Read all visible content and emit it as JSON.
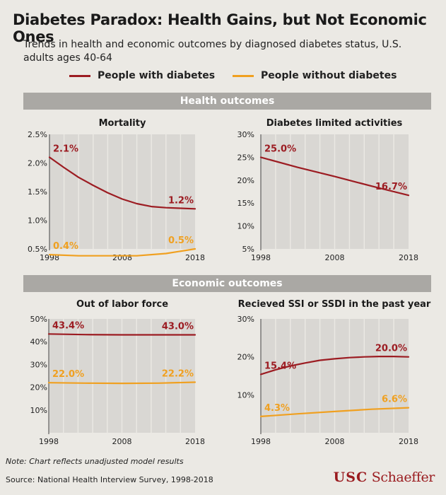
{
  "title": "Diabetes Paradox: Health Gains, but Not Economic Ones",
  "subtitle": "Trends in health and economic outcomes by diagnosed diabetes status, U.S. adults ages 40-64",
  "legend": [
    {
      "label": "People with diabetes",
      "color": "#9c1c22"
    },
    {
      "label": "People without diabetes",
      "color": "#f0a020"
    }
  ],
  "sections": {
    "health": "Health outcomes",
    "economic": "Economic outcomes"
  },
  "note": "Note: Chart reflects unadjusted model results",
  "source": "Source: National Health Interview Survey, 1998-2018",
  "logo": {
    "usc": "USC",
    "schaeffer": "Schaeffer"
  },
  "chart_data": [
    {
      "type": "line",
      "title": "Mortality",
      "x_ticks": [
        "1998",
        "2008",
        "2018"
      ],
      "y_ticks": [
        "2.5%",
        "2.0%",
        "1.5%",
        "1.0%",
        "0.5%"
      ],
      "ylim": [
        0.5,
        2.5
      ],
      "y_tick_values": [
        2.5,
        2.0,
        1.5,
        1.0,
        0.5
      ],
      "grid": "vertical",
      "series": [
        {
          "name": "People with diabetes",
          "color": "#9c1c22",
          "x": [
            1998,
            2000,
            2002,
            2004,
            2006,
            2008,
            2010,
            2012,
            2014,
            2016,
            2018
          ],
          "values": [
            2.1,
            1.92,
            1.75,
            1.61,
            1.48,
            1.37,
            1.29,
            1.24,
            1.22,
            1.21,
            1.2
          ],
          "start_label": "2.1%",
          "end_label": "1.2%"
        },
        {
          "name": "People without diabetes",
          "color": "#f0a020",
          "x": [
            1998,
            2002,
            2006,
            2010,
            2014,
            2018
          ],
          "values": [
            0.4,
            0.38,
            0.38,
            0.38,
            0.42,
            0.5
          ],
          "start_label": "0.4%",
          "end_label": "0.5%"
        }
      ]
    },
    {
      "type": "line",
      "title": "Diabetes limited activities",
      "x_ticks": [
        "1998",
        "2008",
        "2018"
      ],
      "y_ticks": [
        "30%",
        "25%",
        "20%",
        "15%",
        "10%",
        "5%"
      ],
      "ylim": [
        5,
        30
      ],
      "y_tick_values": [
        30,
        25,
        20,
        15,
        10,
        5
      ],
      "grid": "vertical",
      "series": [
        {
          "name": "People with diabetes",
          "color": "#9c1c22",
          "x": [
            1998,
            2003,
            2008,
            2013,
            2018
          ],
          "values": [
            25.0,
            22.8,
            20.8,
            18.7,
            16.7
          ],
          "start_label": "25.0%",
          "end_label": "16.7%"
        }
      ]
    },
    {
      "type": "line",
      "title": "Out of labor force",
      "x_ticks": [
        "1998",
        "2008",
        "2018"
      ],
      "y_ticks": [
        "50%",
        "40%",
        "30%",
        "20%",
        "10%"
      ],
      "ylim": [
        0,
        50
      ],
      "y_tick_values": [
        50,
        40,
        30,
        20,
        10
      ],
      "grid": "vertical",
      "series": [
        {
          "name": "People with diabetes",
          "color": "#9c1c22",
          "x": [
            1998,
            2003,
            2008,
            2013,
            2018
          ],
          "values": [
            43.4,
            43.1,
            43.0,
            43.0,
            43.0
          ],
          "start_label": "43.4%",
          "end_label": "43.0%"
        },
        {
          "name": "People without diabetes",
          "color": "#f0a020",
          "x": [
            1998,
            2003,
            2008,
            2013,
            2018
          ],
          "values": [
            22.0,
            21.8,
            21.7,
            21.8,
            22.2
          ],
          "start_label": "22.0%",
          "end_label": "22.2%"
        }
      ]
    },
    {
      "type": "line",
      "title": "Recieved SSI or SSDI in the past year",
      "x_ticks": [
        "1998",
        "2008",
        "2018"
      ],
      "y_ticks": [
        "30%",
        "20%",
        "10%"
      ],
      "ylim": [
        0,
        30
      ],
      "y_tick_values": [
        30,
        20,
        10
      ],
      "grid": "vertical",
      "series": [
        {
          "name": "People with diabetes",
          "color": "#9c1c22",
          "x": [
            1998,
            2000,
            2002,
            2004,
            2006,
            2008,
            2010,
            2012,
            2014,
            2016,
            2018
          ],
          "values": [
            15.4,
            16.6,
            17.6,
            18.4,
            19.1,
            19.5,
            19.8,
            20.0,
            20.1,
            20.1,
            20.0
          ],
          "start_label": "15.4%",
          "end_label": "20.0%"
        },
        {
          "name": "People without diabetes",
          "color": "#f0a020",
          "x": [
            1998,
            2003,
            2008,
            2013,
            2018
          ],
          "values": [
            4.3,
            5.0,
            5.6,
            6.2,
            6.6
          ],
          "start_label": "4.3%",
          "end_label": "6.6%"
        }
      ]
    }
  ]
}
